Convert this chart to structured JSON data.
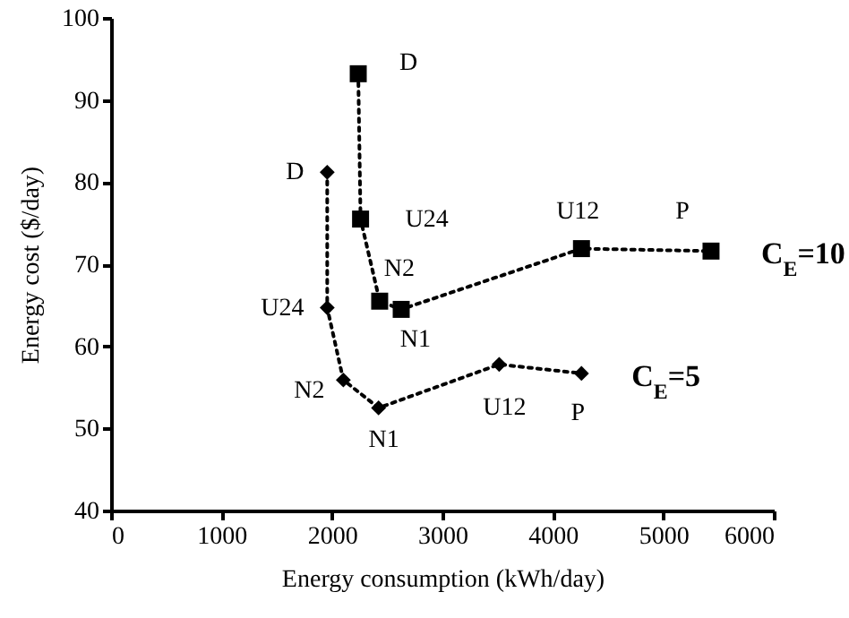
{
  "chart_data": {
    "type": "line",
    "xlabel": "Energy consumption (kWh/day)",
    "ylabel": "Energy cost ($/day)",
    "xlim": [
      0,
      6000
    ],
    "xticks": [
      0,
      1000,
      2000,
      3000,
      4000,
      5000,
      6000
    ],
    "ylim": [
      40,
      100
    ],
    "yticks": [
      40,
      50,
      60,
      70,
      80,
      90,
      100
    ],
    "line_style": "dotted",
    "series": [
      {
        "name": "C$_{E}$=10",
        "color": "#000000",
        "marker": "square",
        "x": [
          2238,
          2259,
          2432,
          2627,
          4259,
          5432
        ],
        "values": [
          93.2,
          75.5,
          65.5,
          64.5,
          71.9,
          71.6
        ]
      },
      {
        "name": "C$_{E}$=5",
        "color": "#000000",
        "marker": "diamond",
        "x": [
          1957,
          1957,
          2103,
          2422,
          3514,
          4259
        ],
        "values": [
          81.2,
          64.7,
          55.9,
          52.5,
          57.8,
          56.7
        ]
      }
    ],
    "annotations": [
      {
        "text": "D",
        "x": 2238,
        "y": 93.2
      },
      {
        "text": "U24",
        "x": 2259,
        "y": 75.5
      },
      {
        "text": "N2",
        "x": 2432,
        "y": 65.5
      },
      {
        "text": "N1",
        "x": 2627,
        "y": 64.5
      },
      {
        "text": "U12",
        "x": 4259,
        "y": 71.9
      },
      {
        "text": "P",
        "x": 5432,
        "y": 71.6
      },
      {
        "text": "D",
        "x": 1957,
        "y": 81.2
      },
      {
        "text": "U24",
        "x": 1957,
        "y": 64.7
      },
      {
        "text": "N2",
        "x": 2103,
        "y": 55.9
      },
      {
        "text": "N1",
        "x": 2422,
        "y": 52.5
      },
      {
        "text": "U12",
        "x": 3514,
        "y": 57.8
      },
      {
        "text": "P",
        "x": 4259,
        "y": 56.7
      }
    ]
  }
}
